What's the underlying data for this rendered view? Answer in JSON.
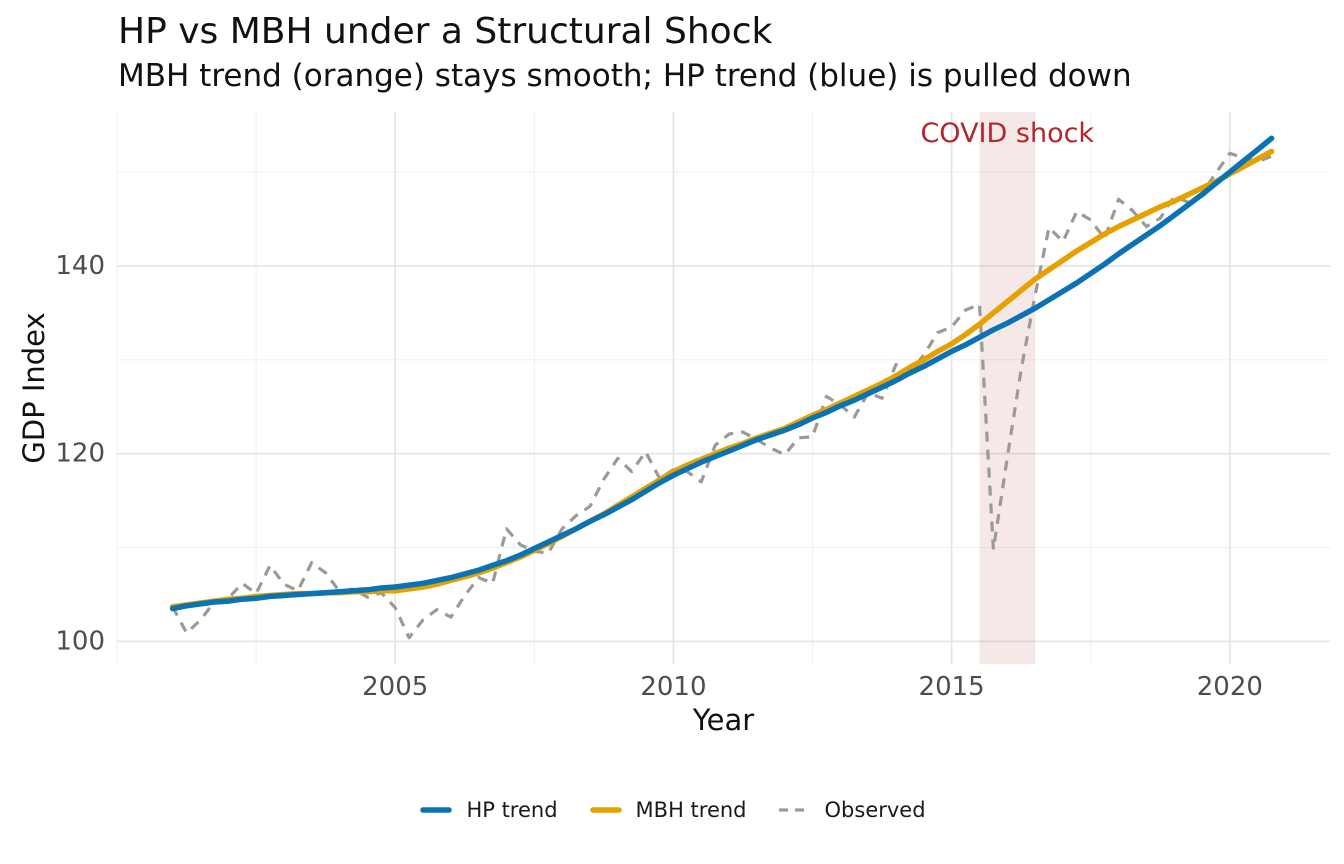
{
  "chart_data": {
    "type": "line",
    "title": "HP vs MBH under a Structural Shock",
    "subtitle": "MBH trend (orange) stays smooth; HP trend (blue) is pulled down",
    "xlabel": "Year",
    "ylabel": "GDP Index",
    "xlim": [
      2000.0,
      2021.8
    ],
    "ylim": [
      97.6,
      156.4
    ],
    "grid": "on",
    "legend_position": "bottom",
    "x_major_ticks": [
      {
        "value": 2005,
        "label": "2005"
      },
      {
        "value": 2010,
        "label": "2010"
      },
      {
        "value": 2015,
        "label": "2015"
      },
      {
        "value": 2020,
        "label": "2020"
      }
    ],
    "y_major_ticks": [
      {
        "value": 100,
        "label": "100"
      },
      {
        "value": 120,
        "label": "120"
      },
      {
        "value": 140,
        "label": "140"
      }
    ],
    "x_minor_ticks": [
      2000,
      2002.5,
      2007.5,
      2012.5,
      2017.5
    ],
    "y_minor_ticks": [
      110,
      130,
      150
    ],
    "grid_major_color": "#e4e4e4",
    "grid_minor_color": "#f0f0f0",
    "band": {
      "x_start": 2015.5,
      "x_end": 2016.5,
      "fill": "rgba(197,80,80,0.13)",
      "label": "COVID shock",
      "label_x": 2016.0,
      "label_y": 154.1,
      "label_color": "#b3262c"
    },
    "x_start": 2001.0,
    "x_step": 0.25,
    "series": [
      {
        "name": "Observed",
        "color": "#9a9a9a",
        "width": 3.2,
        "dash": "10 8",
        "values": [
          103.7,
          100.9,
          102.3,
          104.2,
          104.6,
          106.2,
          105.1,
          108.1,
          106.1,
          105.4,
          108.4,
          107.3,
          105.3,
          105.6,
          104.7,
          105.2,
          103.6,
          100.4,
          102.3,
          103.4,
          102.6,
          104.9,
          106.8,
          106.2,
          112.0,
          110.3,
          109.6,
          109.4,
          112.0,
          113.4,
          114.4,
          117.3,
          119.5,
          118.1,
          120.2,
          117.4,
          118.3,
          118.1,
          117.0,
          120.9,
          122.1,
          122.3,
          121.5,
          120.6,
          119.9,
          121.7,
          121.8,
          126.1,
          125.2,
          123.9,
          126.5,
          125.9,
          129.5,
          128.7,
          130.5,
          132.9,
          133.5,
          135.3,
          135.9,
          109.8,
          119.6,
          129.0,
          136.9,
          144.1,
          142.6,
          145.8,
          144.9,
          142.9,
          147.1,
          145.9,
          144.2,
          145.1,
          147.4,
          146.8,
          147.7,
          149.9,
          152.0,
          151.5,
          151.1,
          151.7
        ]
      },
      {
        "name": "MBH trend",
        "color": "#e6a000",
        "width": 5.5,
        "dash": null,
        "values": [
          103.7,
          103.9,
          104.1,
          104.3,
          104.5,
          104.6,
          104.8,
          104.9,
          105.0,
          105.1,
          105.1,
          105.2,
          105.2,
          105.3,
          105.3,
          105.4,
          105.4,
          105.6,
          105.8,
          106.1,
          106.5,
          106.9,
          107.3,
          107.8,
          108.4,
          109.0,
          109.7,
          110.4,
          111.2,
          112.0,
          112.8,
          113.6,
          114.5,
          115.4,
          116.3,
          117.2,
          118.1,
          118.8,
          119.4,
          120.0,
          120.6,
          121.1,
          121.7,
          122.2,
          122.7,
          123.4,
          124.1,
          124.7,
          125.4,
          126.1,
          126.8,
          127.5,
          128.3,
          129.2,
          130.0,
          130.9,
          131.7,
          132.7,
          133.8,
          135.0,
          136.2,
          137.4,
          138.6,
          139.6,
          140.6,
          141.6,
          142.5,
          143.4,
          144.2,
          144.9,
          145.6,
          146.3,
          146.9,
          147.6,
          148.3,
          149.0,
          149.8,
          150.6,
          151.4,
          152.2
        ]
      },
      {
        "name": "HP trend",
        "color": "#0b73b2",
        "width": 5.5,
        "dash": null,
        "values": [
          103.5,
          103.8,
          104.0,
          104.2,
          104.3,
          104.5,
          104.6,
          104.8,
          104.9,
          105.0,
          105.1,
          105.2,
          105.3,
          105.4,
          105.5,
          105.7,
          105.8,
          106.0,
          106.2,
          106.5,
          106.8,
          107.2,
          107.6,
          108.1,
          108.6,
          109.2,
          109.9,
          110.6,
          111.3,
          112.0,
          112.8,
          113.5,
          114.3,
          115.1,
          116.0,
          116.9,
          117.7,
          118.4,
          119.1,
          119.7,
          120.3,
          120.9,
          121.5,
          122.0,
          122.5,
          123.1,
          123.8,
          124.4,
          125.1,
          125.7,
          126.4,
          127.1,
          127.8,
          128.6,
          129.3,
          130.1,
          130.9,
          131.6,
          132.4,
          133.2,
          133.9,
          134.7,
          135.5,
          136.4,
          137.3,
          138.2,
          139.2,
          140.2,
          141.3,
          142.3,
          143.3,
          144.3,
          145.4,
          146.5,
          147.6,
          148.8,
          150.0,
          151.2,
          152.4,
          153.6
        ]
      }
    ],
    "legend_order": [
      "HP trend",
      "MBH trend",
      "Observed"
    ]
  }
}
